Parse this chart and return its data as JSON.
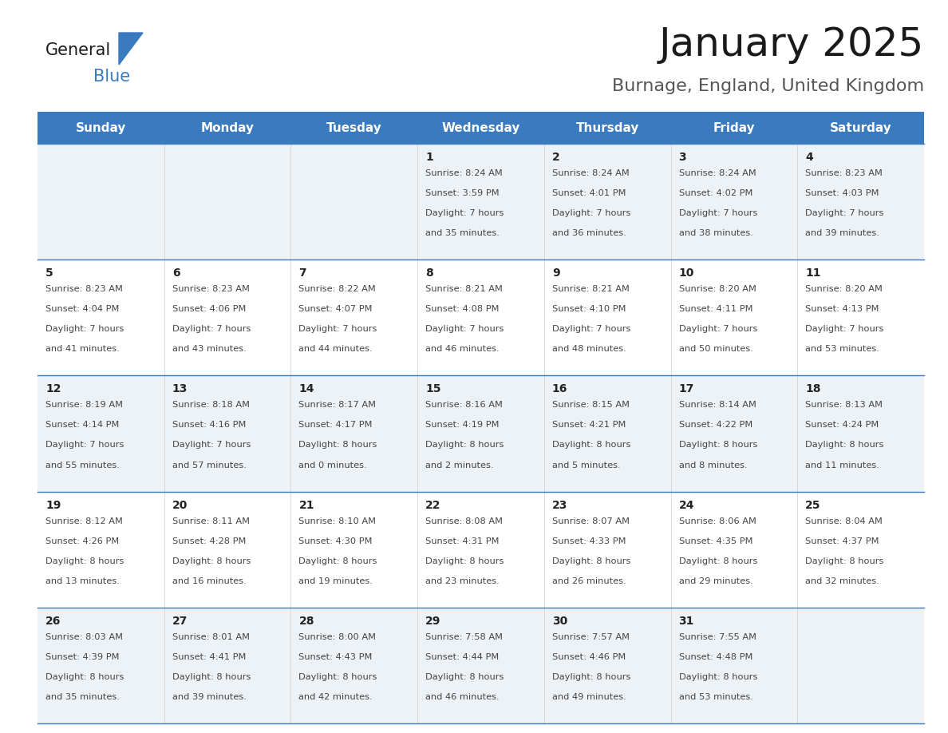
{
  "title": "January 2025",
  "subtitle": "Burnage, England, United Kingdom",
  "header_color": "#3a7abf",
  "header_text_color": "#ffffff",
  "weekdays": [
    "Sunday",
    "Monday",
    "Tuesday",
    "Wednesday",
    "Thursday",
    "Friday",
    "Saturday"
  ],
  "row_bg_colors": [
    "#edf2f7",
    "#ffffff",
    "#edf2f7",
    "#ffffff",
    "#edf2f7"
  ],
  "text_color": "#333333",
  "line_color": "#3a7abf",
  "calendar": [
    [
      null,
      null,
      null,
      {
        "day": 1,
        "sunrise": "8:24 AM",
        "sunset": "3:59 PM",
        "dl1": "Daylight: 7 hours",
        "dl2": "and 35 minutes."
      },
      {
        "day": 2,
        "sunrise": "8:24 AM",
        "sunset": "4:01 PM",
        "dl1": "Daylight: 7 hours",
        "dl2": "and 36 minutes."
      },
      {
        "day": 3,
        "sunrise": "8:24 AM",
        "sunset": "4:02 PM",
        "dl1": "Daylight: 7 hours",
        "dl2": "and 38 minutes."
      },
      {
        "day": 4,
        "sunrise": "8:23 AM",
        "sunset": "4:03 PM",
        "dl1": "Daylight: 7 hours",
        "dl2": "and 39 minutes."
      }
    ],
    [
      {
        "day": 5,
        "sunrise": "8:23 AM",
        "sunset": "4:04 PM",
        "dl1": "Daylight: 7 hours",
        "dl2": "and 41 minutes."
      },
      {
        "day": 6,
        "sunrise": "8:23 AM",
        "sunset": "4:06 PM",
        "dl1": "Daylight: 7 hours",
        "dl2": "and 43 minutes."
      },
      {
        "day": 7,
        "sunrise": "8:22 AM",
        "sunset": "4:07 PM",
        "dl1": "Daylight: 7 hours",
        "dl2": "and 44 minutes."
      },
      {
        "day": 8,
        "sunrise": "8:21 AM",
        "sunset": "4:08 PM",
        "dl1": "Daylight: 7 hours",
        "dl2": "and 46 minutes."
      },
      {
        "day": 9,
        "sunrise": "8:21 AM",
        "sunset": "4:10 PM",
        "dl1": "Daylight: 7 hours",
        "dl2": "and 48 minutes."
      },
      {
        "day": 10,
        "sunrise": "8:20 AM",
        "sunset": "4:11 PM",
        "dl1": "Daylight: 7 hours",
        "dl2": "and 50 minutes."
      },
      {
        "day": 11,
        "sunrise": "8:20 AM",
        "sunset": "4:13 PM",
        "dl1": "Daylight: 7 hours",
        "dl2": "and 53 minutes."
      }
    ],
    [
      {
        "day": 12,
        "sunrise": "8:19 AM",
        "sunset": "4:14 PM",
        "dl1": "Daylight: 7 hours",
        "dl2": "and 55 minutes."
      },
      {
        "day": 13,
        "sunrise": "8:18 AM",
        "sunset": "4:16 PM",
        "dl1": "Daylight: 7 hours",
        "dl2": "and 57 minutes."
      },
      {
        "day": 14,
        "sunrise": "8:17 AM",
        "sunset": "4:17 PM",
        "dl1": "Daylight: 8 hours",
        "dl2": "and 0 minutes."
      },
      {
        "day": 15,
        "sunrise": "8:16 AM",
        "sunset": "4:19 PM",
        "dl1": "Daylight: 8 hours",
        "dl2": "and 2 minutes."
      },
      {
        "day": 16,
        "sunrise": "8:15 AM",
        "sunset": "4:21 PM",
        "dl1": "Daylight: 8 hours",
        "dl2": "and 5 minutes."
      },
      {
        "day": 17,
        "sunrise": "8:14 AM",
        "sunset": "4:22 PM",
        "dl1": "Daylight: 8 hours",
        "dl2": "and 8 minutes."
      },
      {
        "day": 18,
        "sunrise": "8:13 AM",
        "sunset": "4:24 PM",
        "dl1": "Daylight: 8 hours",
        "dl2": "and 11 minutes."
      }
    ],
    [
      {
        "day": 19,
        "sunrise": "8:12 AM",
        "sunset": "4:26 PM",
        "dl1": "Daylight: 8 hours",
        "dl2": "and 13 minutes."
      },
      {
        "day": 20,
        "sunrise": "8:11 AM",
        "sunset": "4:28 PM",
        "dl1": "Daylight: 8 hours",
        "dl2": "and 16 minutes."
      },
      {
        "day": 21,
        "sunrise": "8:10 AM",
        "sunset": "4:30 PM",
        "dl1": "Daylight: 8 hours",
        "dl2": "and 19 minutes."
      },
      {
        "day": 22,
        "sunrise": "8:08 AM",
        "sunset": "4:31 PM",
        "dl1": "Daylight: 8 hours",
        "dl2": "and 23 minutes."
      },
      {
        "day": 23,
        "sunrise": "8:07 AM",
        "sunset": "4:33 PM",
        "dl1": "Daylight: 8 hours",
        "dl2": "and 26 minutes."
      },
      {
        "day": 24,
        "sunrise": "8:06 AM",
        "sunset": "4:35 PM",
        "dl1": "Daylight: 8 hours",
        "dl2": "and 29 minutes."
      },
      {
        "day": 25,
        "sunrise": "8:04 AM",
        "sunset": "4:37 PM",
        "dl1": "Daylight: 8 hours",
        "dl2": "and 32 minutes."
      }
    ],
    [
      {
        "day": 26,
        "sunrise": "8:03 AM",
        "sunset": "4:39 PM",
        "dl1": "Daylight: 8 hours",
        "dl2": "and 35 minutes."
      },
      {
        "day": 27,
        "sunrise": "8:01 AM",
        "sunset": "4:41 PM",
        "dl1": "Daylight: 8 hours",
        "dl2": "and 39 minutes."
      },
      {
        "day": 28,
        "sunrise": "8:00 AM",
        "sunset": "4:43 PM",
        "dl1": "Daylight: 8 hours",
        "dl2": "and 42 minutes."
      },
      {
        "day": 29,
        "sunrise": "7:58 AM",
        "sunset": "4:44 PM",
        "dl1": "Daylight: 8 hours",
        "dl2": "and 46 minutes."
      },
      {
        "day": 30,
        "sunrise": "7:57 AM",
        "sunset": "4:46 PM",
        "dl1": "Daylight: 8 hours",
        "dl2": "and 49 minutes."
      },
      {
        "day": 31,
        "sunrise": "7:55 AM",
        "sunset": "4:48 PM",
        "dl1": "Daylight: 8 hours",
        "dl2": "and 53 minutes."
      },
      null
    ]
  ]
}
